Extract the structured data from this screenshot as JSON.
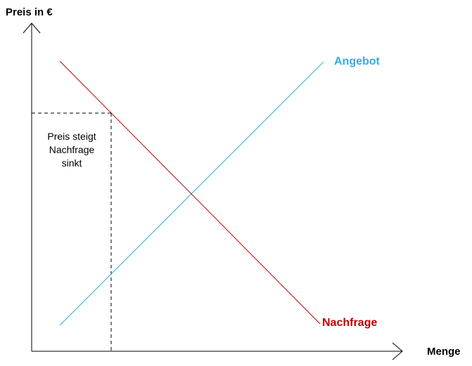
{
  "axes": {
    "y_label": "Preis in €",
    "x_label": "Menge"
  },
  "curves": {
    "supply": {
      "label": "Angebot",
      "color": "#2eaee8"
    },
    "demand": {
      "label": "Nachfrage",
      "color": "#c00000"
    }
  },
  "annotation": {
    "lines": [
      "Preis steigt",
      "Nachfrage",
      "sinkt"
    ]
  },
  "colors": {
    "axis": "#000000",
    "guide": "#000000"
  }
}
